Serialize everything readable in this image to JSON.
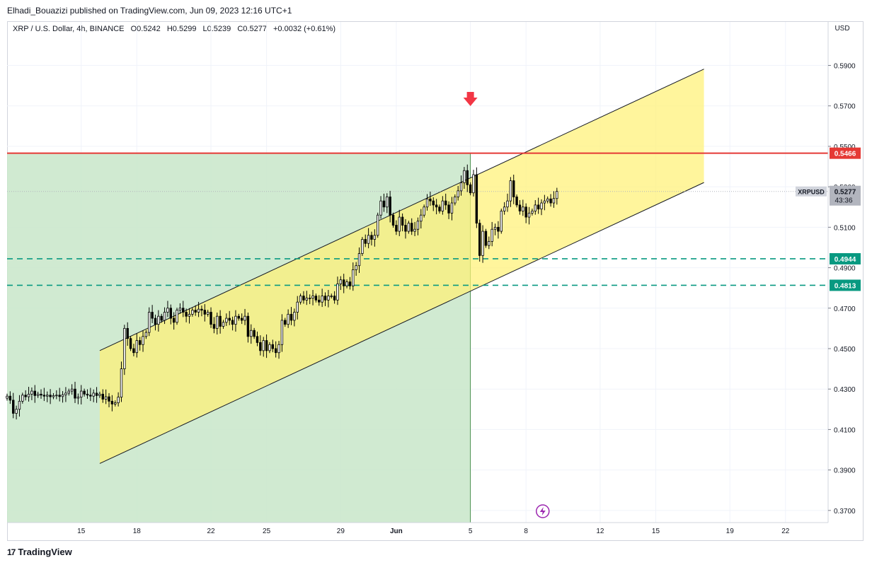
{
  "header": {
    "publisher_line": "Elhadi_Bouazizi published on TradingView.com, Jun 09, 2023 12:16 UTC+1"
  },
  "legend": {
    "symbol": "XRP / U.S. Dollar, 4h, BINANCE",
    "open": "O0.5242",
    "high": "H0.5299",
    "low": "L0.5239",
    "close": "C0.5277",
    "change": "+0.0032 (+0.61%)"
  },
  "footer": {
    "brand": "TradingView"
  },
  "colors": {
    "up": "#000000",
    "down": "#000000",
    "channel_fill": "#fff176",
    "zone_fill": "#c8e6c9",
    "resistance": "#e53935",
    "support": "#089981",
    "arrow": "#f23645",
    "last_price_bg": "#b2b5be"
  },
  "chart_data": {
    "type": "candlestick",
    "currency_label": "USD",
    "y_ticks": [
      "0.5900",
      "0.5700",
      "0.5500",
      "0.5300",
      "0.5100",
      "0.4900",
      "0.4700",
      "0.4500",
      "0.4300",
      "0.4100",
      "0.3900",
      "0.3700"
    ],
    "ylim": [
      0.364,
      0.6115
    ],
    "x_ticks": [
      {
        "label": "15",
        "day": 15
      },
      {
        "label": "18",
        "day": 18
      },
      {
        "label": "22",
        "day": 22
      },
      {
        "label": "25",
        "day": 25
      },
      {
        "label": "29",
        "day": 29
      },
      {
        "label": "Jun",
        "day": 32
      },
      {
        "label": "5",
        "day": 36
      },
      {
        "label": "8",
        "day": 39
      },
      {
        "label": "12",
        "day": 43
      },
      {
        "label": "15",
        "day": 46
      },
      {
        "label": "19",
        "day": 50
      },
      {
        "label": "22",
        "day": 53
      }
    ],
    "xlim_days": [
      11.0,
      55.3
    ],
    "candle_start_day": 11.0,
    "candle_hours": 4,
    "closes": [
      0.4265,
      0.4245,
      0.418,
      0.42,
      0.424,
      0.427,
      0.4262,
      0.4275,
      0.429,
      0.4268,
      0.4275,
      0.427,
      0.4265,
      0.427,
      0.4262,
      0.4268,
      0.427,
      0.4263,
      0.4272,
      0.428,
      0.429,
      0.43,
      0.4255,
      0.426,
      0.429,
      0.4275,
      0.427,
      0.4265,
      0.428,
      0.4268,
      0.4275,
      0.425,
      0.4262,
      0.424,
      0.4226,
      0.4232,
      0.426,
      0.44,
      0.46,
      0.455,
      0.45,
      0.448,
      0.454,
      0.452,
      0.456,
      0.458,
      0.468,
      0.465,
      0.462,
      0.466,
      0.464,
      0.468,
      0.47,
      0.465,
      0.463,
      0.469,
      0.47,
      0.468,
      0.466,
      0.467,
      0.469,
      0.468,
      0.4695,
      0.469,
      0.467,
      0.468,
      0.462,
      0.46,
      0.466,
      0.461,
      0.463,
      0.465,
      0.464,
      0.462,
      0.466,
      0.465,
      0.464,
      0.466,
      0.456,
      0.459,
      0.456,
      0.453,
      0.449,
      0.454,
      0.449,
      0.452,
      0.45,
      0.448,
      0.452,
      0.464,
      0.462,
      0.467,
      0.464,
      0.468,
      0.473,
      0.476,
      0.474,
      0.475,
      0.475,
      0.476,
      0.474,
      0.473,
      0.476,
      0.474,
      0.476,
      0.476,
      0.474,
      0.482,
      0.484,
      0.481,
      0.483,
      0.481,
      0.489,
      0.491,
      0.497,
      0.504,
      0.502,
      0.506,
      0.504,
      0.506,
      0.516,
      0.523,
      0.52,
      0.525,
      0.516,
      0.511,
      0.508,
      0.515,
      0.511,
      0.508,
      0.512,
      0.508,
      0.509,
      0.513,
      0.516,
      0.52,
      0.524,
      0.523,
      0.521,
      0.52,
      0.518,
      0.523,
      0.521,
      0.517,
      0.522,
      0.525,
      0.528,
      0.532,
      0.538,
      0.531,
      0.527,
      0.536,
      0.512,
      0.496,
      0.508,
      0.501,
      0.503,
      0.509,
      0.51,
      0.508,
      0.518,
      0.52,
      0.523,
      0.533,
      0.525,
      0.521,
      0.518,
      0.52,
      0.515,
      0.517,
      0.518,
      0.521,
      0.519,
      0.522,
      0.523,
      0.524,
      0.522,
      0.5242,
      0.5277
    ],
    "overlays": {
      "resistance_level": 0.5466,
      "support_levels": [
        0.4944,
        0.4813
      ],
      "channel": {
        "upper": {
          "start_day": 16.0,
          "start": 0.449,
          "end_day": 48.6,
          "end": 0.5882
        },
        "lower": {
          "start_day": 16.0,
          "start": 0.3932,
          "end_day": 48.6,
          "end": 0.5321
        },
        "fill_right_day": 48.6
      },
      "zone": {
        "from_day": 11.0,
        "to_day": 36.0,
        "top": 0.5466
      },
      "vertical_marker_day": 36.0,
      "sell_arrow": {
        "day": 36.0,
        "price": 0.572
      }
    },
    "price_labels": [
      {
        "value": "0.5466",
        "kind": "resistance"
      },
      {
        "value": "0.4944",
        "kind": "support"
      },
      {
        "value": "0.4813",
        "kind": "support"
      }
    ],
    "last_price": {
      "symbol": "XRPUSD",
      "value": "0.5277",
      "countdown": "43:36",
      "price": 0.5277
    }
  }
}
